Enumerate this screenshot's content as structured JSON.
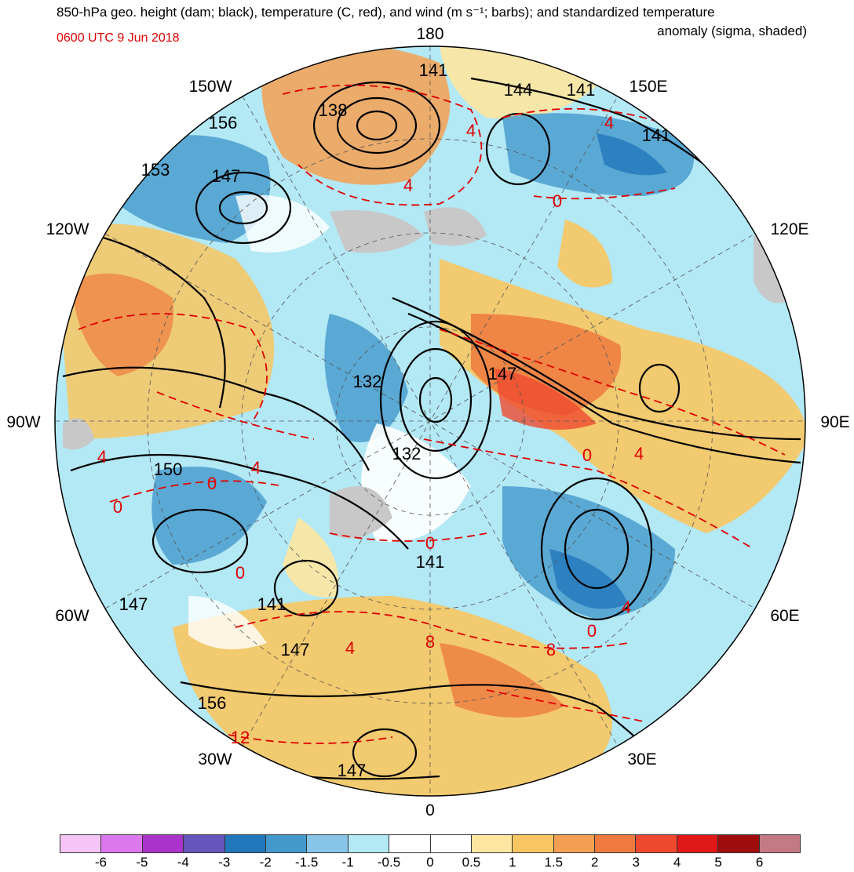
{
  "header": {
    "title_line1": "850-hPa geo. height (dam; black), temperature (C, red), and wind (m s⁻¹; barbs); and standardized temperature",
    "title_line2": "anomaly (sigma, shaded)",
    "timestamp": "0600 UTC 9 Jun 2018"
  },
  "map": {
    "longitude_labels": {
      "top": "180",
      "bottom": "0",
      "left": "90W",
      "right": "90E",
      "upper_left_1": "150W",
      "upper_left_2": "120W",
      "lower_left_1": "60W",
      "lower_left_2": "30W",
      "upper_right_1": "150E",
      "upper_right_2": "120E",
      "lower_right_1": "60E",
      "lower_right_2": "30E"
    },
    "height_contour_labels": [
      "141",
      "144",
      "141",
      "138",
      "156",
      "141",
      "153",
      "147",
      "132",
      "147",
      "132",
      "150",
      "141",
      "147",
      "141",
      "147",
      "156",
      "147"
    ],
    "temperature_labels": [
      "4",
      "4",
      "4",
      "0",
      "0",
      "4",
      "0",
      "4",
      "0",
      "4",
      "0",
      "0",
      "8",
      "4",
      "8",
      "12",
      "4",
      "0"
    ]
  },
  "colorbar": {
    "ticks": [
      "-6",
      "-5",
      "-4",
      "-3",
      "-2",
      "-1.5",
      "-1",
      "-0.5",
      "0",
      "0.5",
      "1",
      "1.5",
      "2",
      "3",
      "4",
      "5",
      "6"
    ],
    "colors": [
      "#f5c6f5",
      "#dd77ee",
      "#aa33cc",
      "#6655bb",
      "#2277bb",
      "#4499cc",
      "#88c5e8",
      "#b3e8f5",
      "#ffffff",
      "#ffffff",
      "#fde7a0",
      "#f8c660",
      "#f3a052",
      "#ee7a40",
      "#ef4a30",
      "#e01818",
      "#a00d0d",
      "#c47a85"
    ]
  }
}
